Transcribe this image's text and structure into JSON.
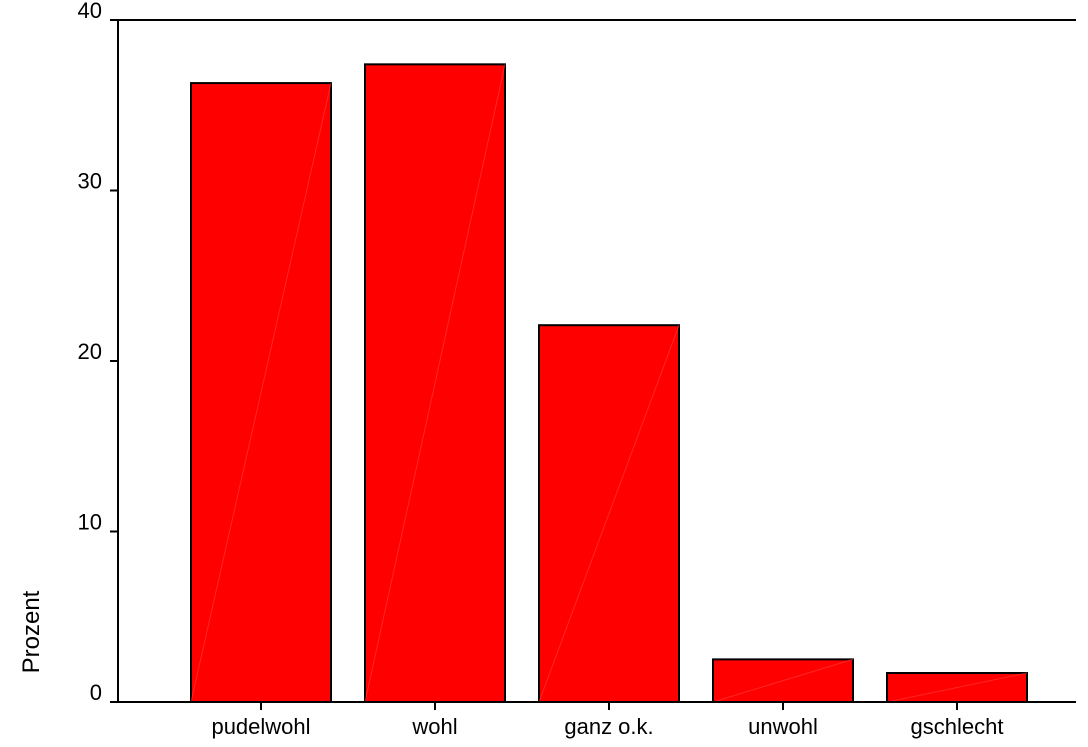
{
  "chart_data": {
    "type": "bar",
    "categories": [
      "pudelwohl",
      "wohl",
      "ganz o.k.",
      "unwohl",
      "gschlecht"
    ],
    "values": [
      36.3,
      37.4,
      22.1,
      2.5,
      1.7
    ],
    "title": "",
    "xlabel": "",
    "ylabel": "Prozent",
    "ylim": [
      0,
      40
    ],
    "yticks": [
      0,
      10,
      20,
      30,
      40
    ],
    "grid": false,
    "bar_color": "#ff0000",
    "bar_edge_color": "#000000"
  }
}
